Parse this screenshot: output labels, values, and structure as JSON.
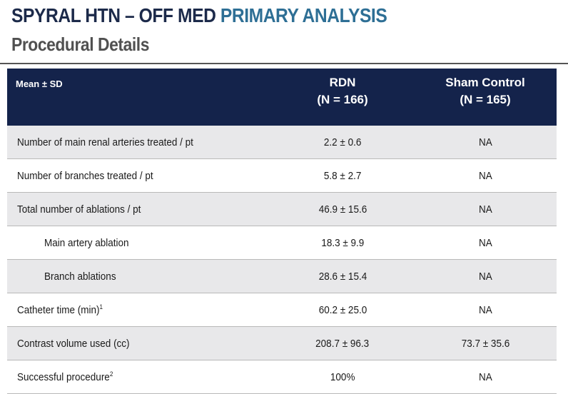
{
  "header": {
    "title_dark": "SPYRAL HTN – OFF MED",
    "title_accent": "PRIMARY ANALYSIS",
    "subtitle": "Procedural Details",
    "accent_color": "#2e6f95",
    "header_bar_color": "#14234b"
  },
  "table": {
    "columns": {
      "label": "Mean ± SD",
      "rdn_name": "RDN",
      "rdn_n": "(N = 166)",
      "sham_name": "Sham Control",
      "sham_n": "(N = 165)"
    },
    "rows": [
      {
        "label": "Number of main renal arteries treated / pt",
        "sup": "",
        "rdn": "2.2 ± 0.6",
        "sham": "NA"
      },
      {
        "label": "Number of branches treated / pt",
        "sup": "",
        "rdn": "5.8 ± 2.7",
        "sham": "NA"
      },
      {
        "label": "Total number of ablations / pt",
        "sup": "",
        "rdn": "46.9 ± 15.6",
        "sham": "NA"
      },
      {
        "label": "Main artery ablation",
        "sup": "",
        "rdn": "18.3 ± 9.9",
        "sham": "NA"
      },
      {
        "label": "Branch ablations",
        "sup": "",
        "rdn": "28.6 ± 15.4",
        "sham": "NA"
      },
      {
        "label": "Catheter time (min)",
        "sup": "1",
        "rdn": "60.2 ± 25.0",
        "sham": "NA"
      },
      {
        "label": "Contrast volume used (cc)",
        "sup": "",
        "rdn": "208.7 ± 96.3",
        "sham": "73.7 ± 35.6"
      },
      {
        "label": "Successful procedure",
        "sup": "2",
        "rdn": "100%",
        "sham": "NA"
      }
    ]
  }
}
